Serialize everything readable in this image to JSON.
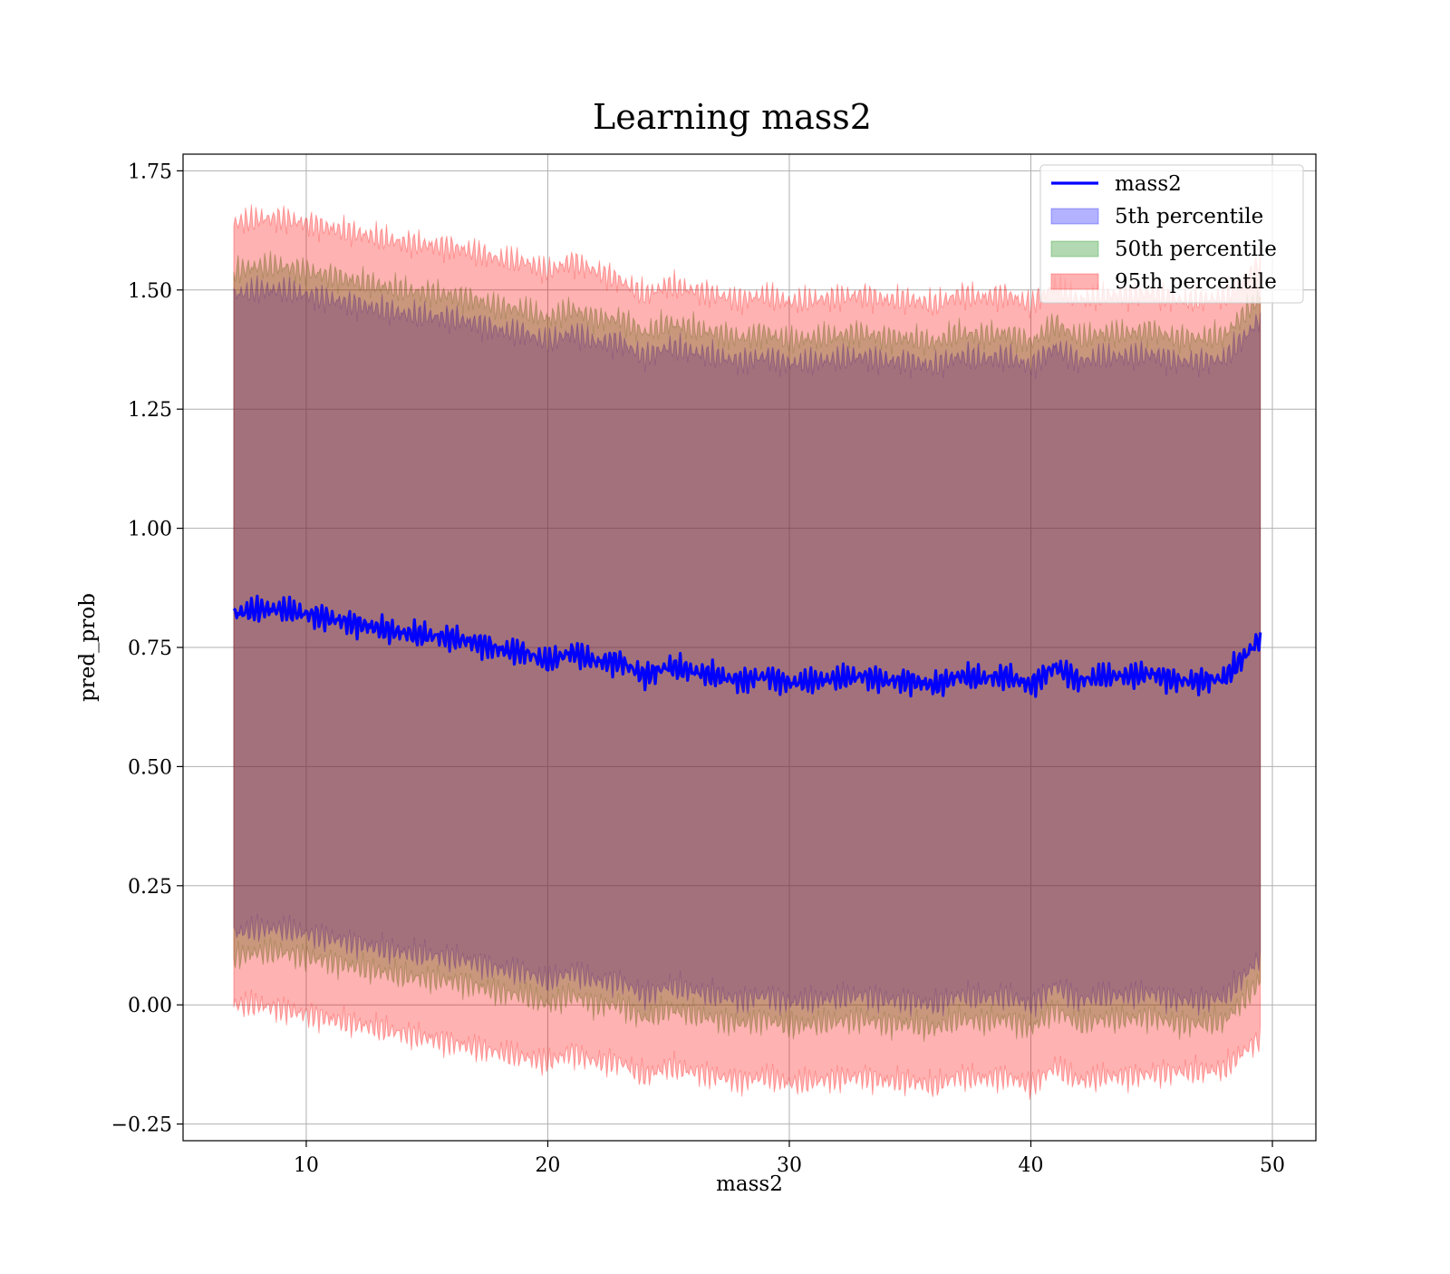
{
  "chart_data": {
    "type": "line",
    "title": "Learning mass2",
    "xlabel": "mass2",
    "ylabel": "pred_prob",
    "xlim": [
      4.9,
      51.8
    ],
    "ylim": [
      -0.285,
      1.785
    ],
    "xticks": [
      10,
      20,
      30,
      40,
      50
    ],
    "xtick_labels": [
      "10",
      "20",
      "30",
      "40",
      "50"
    ],
    "yticks": [
      -0.25,
      0.0,
      0.25,
      0.5,
      0.75,
      1.0,
      1.25,
      1.5,
      1.75
    ],
    "ytick_labels": [
      "−0.25",
      "0.00",
      "0.25",
      "0.50",
      "0.75",
      "1.00",
      "1.25",
      "1.50",
      "1.75"
    ],
    "grid": true,
    "legend_position": "top-right",
    "x": [
      7,
      8,
      9,
      10,
      11,
      12,
      13,
      14,
      15,
      16,
      17,
      18,
      19,
      20,
      21,
      22,
      23,
      24,
      25,
      26,
      27,
      28,
      29,
      30,
      31,
      32,
      33,
      34,
      35,
      36,
      37,
      38,
      39,
      40,
      41,
      42,
      43,
      44,
      45,
      46,
      47,
      48,
      49,
      49.5
    ],
    "series": [
      {
        "name": "mass2",
        "kind": "line",
        "color": "#0000ff",
        "values": [
          0.82,
          0.83,
          0.83,
          0.82,
          0.81,
          0.8,
          0.79,
          0.78,
          0.775,
          0.77,
          0.76,
          0.745,
          0.74,
          0.72,
          0.74,
          0.72,
          0.72,
          0.69,
          0.71,
          0.7,
          0.69,
          0.68,
          0.69,
          0.675,
          0.68,
          0.685,
          0.69,
          0.68,
          0.68,
          0.67,
          0.69,
          0.685,
          0.69,
          0.67,
          0.71,
          0.68,
          0.69,
          0.69,
          0.695,
          0.68,
          0.68,
          0.685,
          0.74,
          0.77
        ]
      },
      {
        "name": "5th percentile",
        "kind": "band",
        "color": "#0000ff",
        "lower": [
          0.15,
          0.16,
          0.16,
          0.15,
          0.14,
          0.13,
          0.12,
          0.11,
          0.105,
          0.1,
          0.09,
          0.075,
          0.07,
          0.05,
          0.07,
          0.05,
          0.05,
          0.02,
          0.04,
          0.03,
          0.02,
          0.01,
          0.02,
          0.005,
          0.01,
          0.015,
          0.02,
          0.01,
          0.01,
          0.0,
          0.02,
          0.015,
          0.02,
          0.0,
          0.04,
          0.01,
          0.02,
          0.02,
          0.025,
          0.01,
          0.01,
          0.015,
          0.07,
          0.1
        ],
        "upper": [
          1.49,
          1.5,
          1.5,
          1.49,
          1.48,
          1.47,
          1.46,
          1.45,
          1.445,
          1.44,
          1.43,
          1.415,
          1.41,
          1.39,
          1.41,
          1.39,
          1.39,
          1.36,
          1.38,
          1.37,
          1.36,
          1.35,
          1.36,
          1.345,
          1.35,
          1.355,
          1.36,
          1.35,
          1.35,
          1.34,
          1.36,
          1.355,
          1.36,
          1.34,
          1.38,
          1.35,
          1.36,
          1.36,
          1.365,
          1.35,
          1.35,
          1.355,
          1.41,
          1.44
        ]
      },
      {
        "name": "50th percentile",
        "kind": "band",
        "color": "#008000",
        "lower": [
          0.1,
          0.11,
          0.11,
          0.1,
          0.09,
          0.08,
          0.07,
          0.06,
          0.055,
          0.05,
          0.04,
          0.025,
          0.02,
          0.0,
          0.02,
          0.0,
          0.0,
          -0.03,
          -0.01,
          -0.02,
          -0.03,
          -0.04,
          -0.03,
          -0.045,
          -0.04,
          -0.035,
          -0.03,
          -0.04,
          -0.04,
          -0.05,
          -0.03,
          -0.035,
          -0.03,
          -0.05,
          -0.01,
          -0.04,
          -0.03,
          -0.03,
          -0.025,
          -0.04,
          -0.04,
          -0.035,
          0.02,
          0.05
        ],
        "upper": [
          1.54,
          1.55,
          1.55,
          1.54,
          1.53,
          1.52,
          1.51,
          1.5,
          1.495,
          1.49,
          1.48,
          1.465,
          1.46,
          1.44,
          1.46,
          1.44,
          1.44,
          1.41,
          1.43,
          1.42,
          1.41,
          1.4,
          1.41,
          1.395,
          1.4,
          1.405,
          1.41,
          1.4,
          1.4,
          1.39,
          1.41,
          1.405,
          1.41,
          1.39,
          1.43,
          1.4,
          1.41,
          1.41,
          1.415,
          1.4,
          1.4,
          1.405,
          1.46,
          1.49
        ]
      },
      {
        "name": "95th percentile",
        "kind": "band",
        "color": "#ff0000",
        "lower": [
          0.0,
          0.0,
          -0.01,
          -0.02,
          -0.03,
          -0.04,
          -0.05,
          -0.06,
          -0.07,
          -0.08,
          -0.09,
          -0.1,
          -0.11,
          -0.12,
          -0.1,
          -0.12,
          -0.12,
          -0.15,
          -0.13,
          -0.14,
          -0.15,
          -0.16,
          -0.15,
          -0.165,
          -0.16,
          -0.155,
          -0.15,
          -0.16,
          -0.16,
          -0.17,
          -0.15,
          -0.155,
          -0.15,
          -0.17,
          -0.13,
          -0.16,
          -0.15,
          -0.15,
          -0.145,
          -0.14,
          -0.14,
          -0.135,
          -0.09,
          -0.07
        ],
        "upper": [
          1.64,
          1.65,
          1.65,
          1.64,
          1.63,
          1.62,
          1.61,
          1.6,
          1.595,
          1.59,
          1.58,
          1.565,
          1.56,
          1.54,
          1.56,
          1.54,
          1.52,
          1.49,
          1.51,
          1.5,
          1.49,
          1.48,
          1.49,
          1.475,
          1.48,
          1.485,
          1.49,
          1.48,
          1.48,
          1.47,
          1.49,
          1.485,
          1.49,
          1.47,
          1.51,
          1.48,
          1.49,
          1.49,
          1.495,
          1.48,
          1.48,
          1.485,
          1.53,
          1.56
        ]
      }
    ]
  }
}
